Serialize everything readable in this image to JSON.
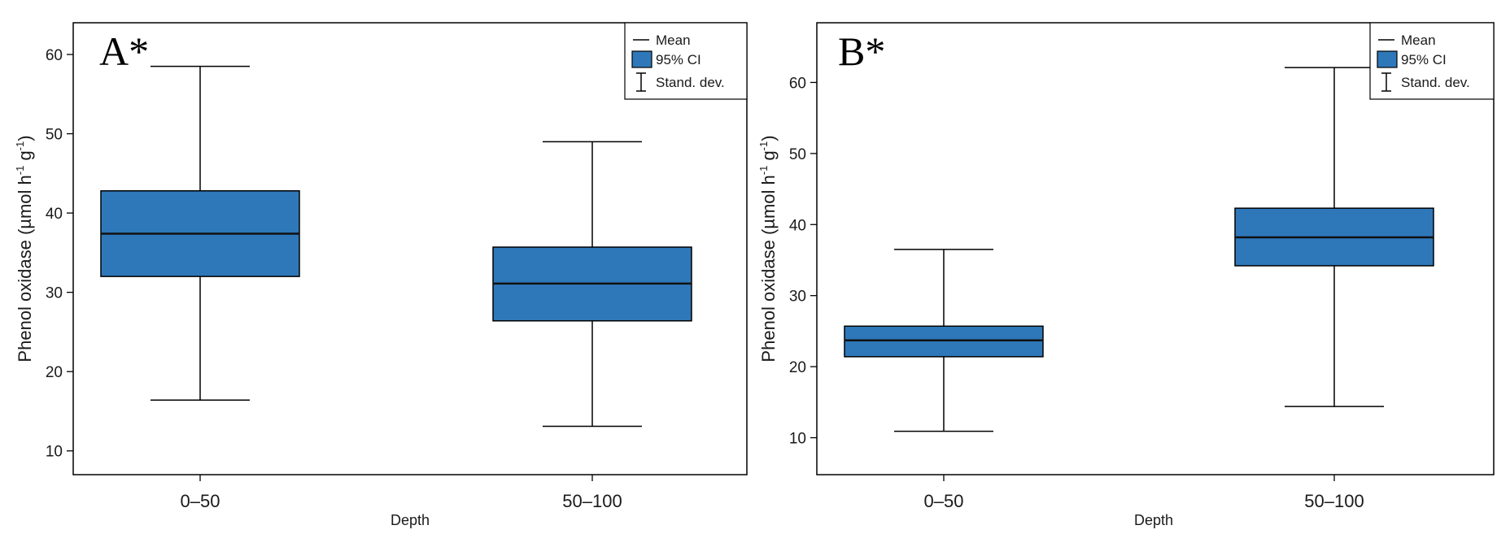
{
  "figure": {
    "legend": {
      "mean_label": "Mean",
      "ci_label": "95% CI",
      "sd_label": "Stand. dev."
    },
    "colors": {
      "box_fill": "#2e78b9",
      "line": "#000000",
      "mean_line": "#111111"
    }
  },
  "chart_data": [
    {
      "type": "box",
      "panel_label": "A*",
      "xlabel": "Depth",
      "ylabel": "Phenol oxidase (µmol h",
      "ylabel_sup1": "-1",
      "ylabel_mid": " g",
      "ylabel_sup2": "-1",
      "ylabel_end": ")",
      "ylim": [
        7,
        64
      ],
      "yticks": [
        10,
        20,
        30,
        40,
        50,
        60
      ],
      "ytick_labels": [
        "10",
        "20",
        "30",
        "40",
        "50",
        "60"
      ],
      "categories": [
        "0–50",
        "50–100"
      ],
      "series": [
        {
          "category": "0–50",
          "mean": 37.4,
          "ci_low": 32.0,
          "ci_high": 42.8,
          "sd_low": 16.4,
          "sd_high": 58.5
        },
        {
          "category": "50–100",
          "mean": 31.1,
          "ci_low": 26.4,
          "ci_high": 35.7,
          "sd_low": 13.1,
          "sd_high": 49.0
        }
      ],
      "legend_position": "top-right"
    },
    {
      "type": "box",
      "panel_label": "B*",
      "xlabel": "Depth",
      "ylabel": "Phenol oxidase (µmol h",
      "ylabel_sup1": "-1",
      "ylabel_mid": " g",
      "ylabel_sup2": "-1",
      "ylabel_end": ")",
      "ylim": [
        4.8,
        68.4
      ],
      "yticks": [
        10,
        20,
        30,
        40,
        50,
        60
      ],
      "ytick_labels": [
        "10",
        "20",
        "30",
        "40",
        "50",
        "60"
      ],
      "categories": [
        "0–50",
        "50–100"
      ],
      "series": [
        {
          "category": "0–50",
          "mean": 23.7,
          "ci_low": 21.4,
          "ci_high": 25.7,
          "sd_low": 10.9,
          "sd_high": 36.5
        },
        {
          "category": "50–100",
          "mean": 38.2,
          "ci_low": 34.2,
          "ci_high": 42.3,
          "sd_low": 14.4,
          "sd_high": 62.1
        }
      ],
      "legend_position": "top-right"
    }
  ]
}
